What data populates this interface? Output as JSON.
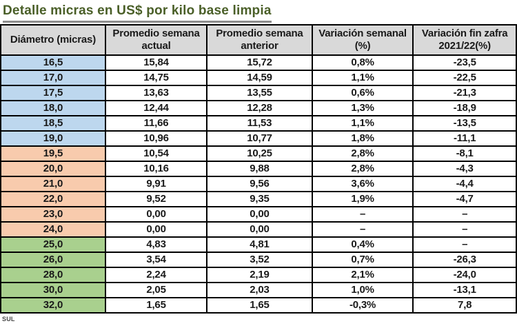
{
  "title": "Detalle micras en US$ por kilo base limpia",
  "footer": {
    "source": "SUL"
  },
  "colors": {
    "title_green": "#4a5f28",
    "header_gray": "#d9d9d9",
    "row_blue": "#bdd7ee",
    "row_orange": "#f8cbad",
    "row_green": "#a9d08e",
    "border_black": "#000000",
    "underline_gray": "#8c8c8c",
    "footer_gray": "#4a4a4a"
  },
  "table": {
    "columns": [
      "Diámetro (micras)",
      "Promedio semana actual",
      "Promedio semana anterior",
      "Variación semanal (%)",
      "Variación fin zafra 2021/22(%)"
    ],
    "rows": [
      {
        "diametro": "16,5",
        "actual": "15,84",
        "anterior": "15,72",
        "var_semanal": "0,8%",
        "var_zafra": "-23,5",
        "group": "blue"
      },
      {
        "diametro": "17,0",
        "actual": "14,75",
        "anterior": "14,59",
        "var_semanal": "1,1%",
        "var_zafra": "-22,5",
        "group": "blue"
      },
      {
        "diametro": "17,5",
        "actual": "13,63",
        "anterior": "13,55",
        "var_semanal": "0,6%",
        "var_zafra": "-21,3",
        "group": "blue"
      },
      {
        "diametro": "18,0",
        "actual": "12,44",
        "anterior": "12,28",
        "var_semanal": "1,3%",
        "var_zafra": "-18,9",
        "group": "blue"
      },
      {
        "diametro": "18,5",
        "actual": "11,66",
        "anterior": "11,53",
        "var_semanal": "1,1%",
        "var_zafra": "-13,5",
        "group": "blue"
      },
      {
        "diametro": "19,0",
        "actual": "10,96",
        "anterior": "10,77",
        "var_semanal": "1,8%",
        "var_zafra": "-11,1",
        "group": "blue"
      },
      {
        "diametro": "19,5",
        "actual": "10,54",
        "anterior": "10,25",
        "var_semanal": "2,8%",
        "var_zafra": "-8,1",
        "group": "orange"
      },
      {
        "diametro": "20,0",
        "actual": "10,16",
        "anterior": "9,88",
        "var_semanal": "2,8%",
        "var_zafra": "-4,3",
        "group": "orange"
      },
      {
        "diametro": "21,0",
        "actual": "9,91",
        "anterior": "9,56",
        "var_semanal": "3,6%",
        "var_zafra": "-4,4",
        "group": "orange"
      },
      {
        "diametro": "22,0",
        "actual": "9,52",
        "anterior": "9,35",
        "var_semanal": "1,9%",
        "var_zafra": "-4,7",
        "group": "orange"
      },
      {
        "diametro": "23,0",
        "actual": "0,00",
        "anterior": "0,00",
        "var_semanal": "–",
        "var_zafra": "–",
        "group": "orange"
      },
      {
        "diametro": "24,0",
        "actual": "0,00",
        "anterior": "0,00",
        "var_semanal": "–",
        "var_zafra": "–",
        "group": "orange"
      },
      {
        "diametro": "25,0",
        "actual": "4,83",
        "anterior": "4,81",
        "var_semanal": "0,4%",
        "var_zafra": "–",
        "group": "green"
      },
      {
        "diametro": "26,0",
        "actual": "3,54",
        "anterior": "3,52",
        "var_semanal": "0,7%",
        "var_zafra": "-26,3",
        "group": "green"
      },
      {
        "diametro": "28,0",
        "actual": "2,24",
        "anterior": "2,19",
        "var_semanal": "2,1%",
        "var_zafra": "-24,0",
        "group": "green"
      },
      {
        "diametro": "30,0",
        "actual": "2,05",
        "anterior": "2,03",
        "var_semanal": "1,0%",
        "var_zafra": "-13,1",
        "group": "green"
      },
      {
        "diametro": "32,0",
        "actual": "1,65",
        "anterior": "1,65",
        "var_semanal": "-0,3%",
        "var_zafra": "7,8",
        "group": "green"
      }
    ]
  },
  "chart_data": {
    "type": "table",
    "title": "Detalle micras en US$ por kilo base limpia",
    "columns": [
      "Diámetro (micras)",
      "Promedio semana actual",
      "Promedio semana anterior",
      "Variación semanal (%)",
      "Variación fin zafra 2021/22(%)"
    ],
    "rows": [
      [
        "16,5",
        "15,84",
        "15,72",
        "0,8%",
        "-23,5"
      ],
      [
        "17,0",
        "14,75",
        "14,59",
        "1,1%",
        "-22,5"
      ],
      [
        "17,5",
        "13,63",
        "13,55",
        "0,6%",
        "-21,3"
      ],
      [
        "18,0",
        "12,44",
        "12,28",
        "1,3%",
        "-18,9"
      ],
      [
        "18,5",
        "11,66",
        "11,53",
        "1,1%",
        "-13,5"
      ],
      [
        "19,0",
        "10,96",
        "10,77",
        "1,8%",
        "-11,1"
      ],
      [
        "19,5",
        "10,54",
        "10,25",
        "2,8%",
        "-8,1"
      ],
      [
        "20,0",
        "10,16",
        "9,88",
        "2,8%",
        "-4,3"
      ],
      [
        "21,0",
        "9,91",
        "9,56",
        "3,6%",
        "-4,4"
      ],
      [
        "22,0",
        "9,52",
        "9,35",
        "1,9%",
        "-4,7"
      ],
      [
        "23,0",
        "0,00",
        "0,00",
        "–",
        "–"
      ],
      [
        "24,0",
        "0,00",
        "0,00",
        "–",
        "–"
      ],
      [
        "25,0",
        "4,83",
        "4,81",
        "0,4%",
        "–"
      ],
      [
        "26,0",
        "3,54",
        "3,52",
        "0,7%",
        "-26,3"
      ],
      [
        "28,0",
        "2,24",
        "2,19",
        "2,1%",
        "-24,0"
      ],
      [
        "30,0",
        "2,05",
        "2,03",
        "1,0%",
        "-13,1"
      ],
      [
        "32,0",
        "1,65",
        "1,65",
        "-0,3%",
        "7,8"
      ]
    ],
    "row_groups": {
      "blue": [
        "16,5",
        "17,0",
        "17,5",
        "18,0",
        "18,5",
        "19,0"
      ],
      "orange": [
        "19,5",
        "20,0",
        "21,0",
        "22,0",
        "23,0",
        "24,0"
      ],
      "green": [
        "25,0",
        "26,0",
        "28,0",
        "30,0",
        "32,0"
      ]
    },
    "source": "SUL"
  }
}
